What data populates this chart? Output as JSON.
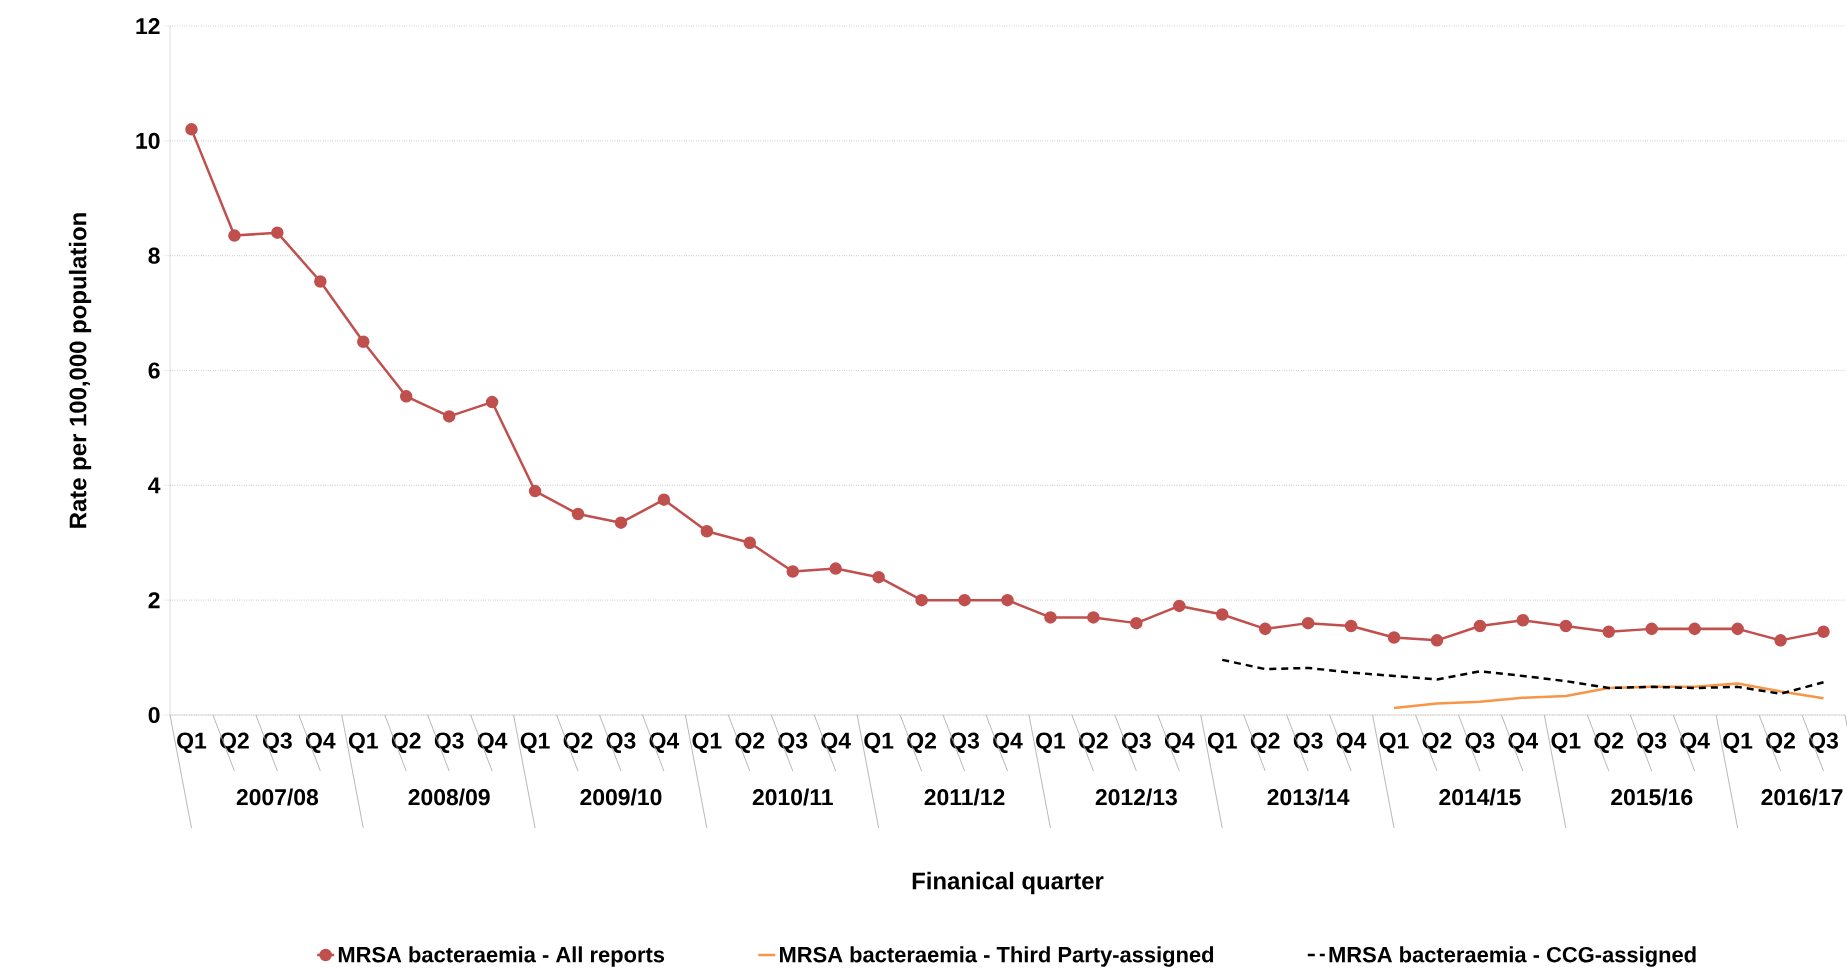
{
  "chart_data": {
    "type": "line",
    "xlabel": "Finanical quarter",
    "ylabel": "Rate per 100,000 population",
    "categories": [
      "Q1",
      "Q2",
      "Q3",
      "Q4",
      "Q1",
      "Q2",
      "Q3",
      "Q4",
      "Q1",
      "Q2",
      "Q3",
      "Q4",
      "Q1",
      "Q2",
      "Q3",
      "Q4",
      "Q1",
      "Q2",
      "Q3",
      "Q4",
      "Q1",
      "Q2",
      "Q3",
      "Q4",
      "Q1",
      "Q2",
      "Q3",
      "Q4",
      "Q1",
      "Q2",
      "Q3",
      "Q4",
      "Q1",
      "Q2",
      "Q3",
      "Q4",
      "Q1",
      "Q2",
      "Q3"
    ],
    "annotations": [
      "2007/08",
      "2008/09",
      "2009/10",
      "2010/11",
      "2011/12",
      "2012/13",
      "2013/14",
      "2014/15",
      "2015/16",
      "2016/17"
    ],
    "series": [
      {
        "name": "MRSA bacteraemia - All reports",
        "color": "#c0504d",
        "marker": "circle",
        "line_style": "solid",
        "values": [
          10.2,
          8.35,
          8.4,
          7.55,
          6.5,
          5.55,
          5.2,
          5.45,
          3.9,
          3.5,
          3.35,
          3.75,
          3.2,
          3.0,
          2.5,
          2.55,
          2.4,
          2.0,
          2.0,
          2.0,
          1.7,
          1.7,
          1.6,
          1.9,
          1.75,
          1.5,
          1.6,
          1.55,
          1.35,
          1.3,
          1.55,
          1.65,
          1.55,
          1.45,
          1.5,
          1.5,
          1.5,
          1.3,
          1.45
        ]
      },
      {
        "name": "MRSA bacteraemia - Third Party-assigned",
        "color": "#f79646",
        "marker": "none",
        "line_style": "solid",
        "values": [
          null,
          null,
          null,
          null,
          null,
          null,
          null,
          null,
          null,
          null,
          null,
          null,
          null,
          null,
          null,
          null,
          null,
          null,
          null,
          null,
          null,
          null,
          null,
          null,
          null,
          null,
          null,
          null,
          0.12,
          0.2,
          0.23,
          0.3,
          0.33,
          0.47,
          0.49,
          0.49,
          0.55,
          0.41,
          0.29
        ]
      },
      {
        "name": "MRSA bacteraemia - CCG-assigned",
        "color": "#000000",
        "marker": "none",
        "line_style": "dashed",
        "values": [
          null,
          null,
          null,
          null,
          null,
          null,
          null,
          null,
          null,
          null,
          null,
          null,
          null,
          null,
          null,
          null,
          null,
          null,
          null,
          null,
          null,
          null,
          null,
          null,
          0.96,
          0.8,
          0.82,
          0.74,
          0.68,
          0.62,
          0.76,
          0.68,
          0.59,
          0.47,
          0.49,
          0.47,
          0.49,
          0.37,
          0.57
        ]
      }
    ],
    "ylim": [
      0,
      12
    ],
    "yticks": [
      0,
      2,
      4,
      6,
      8,
      10,
      12
    ],
    "grid": "y",
    "legend": "bottom"
  }
}
